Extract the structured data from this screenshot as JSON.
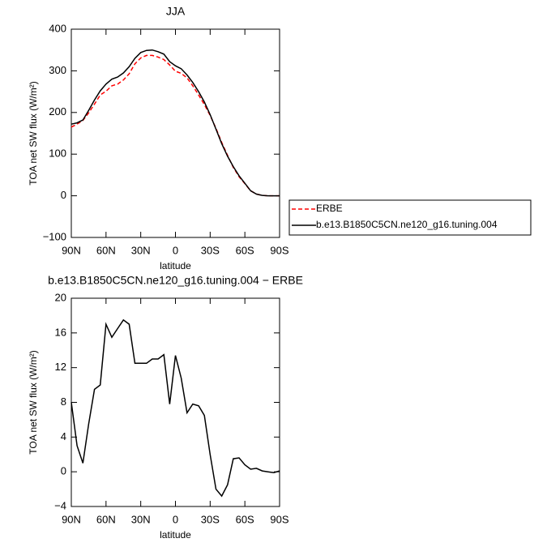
{
  "chart_data": [
    {
      "type": "line",
      "title": "JJA",
      "xlabel": "latitude",
      "ylabel": "TOA net SW flux (W/m²)",
      "x": [
        90,
        85,
        80,
        75,
        70,
        65,
        60,
        55,
        50,
        45,
        40,
        35,
        30,
        25,
        20,
        15,
        10,
        5,
        0,
        -5,
        -10,
        -15,
        -20,
        -25,
        -30,
        -35,
        -40,
        -45,
        -50,
        -55,
        -60,
        -65,
        -70,
        -75,
        -80,
        -85,
        -90
      ],
      "series": [
        {
          "name": "ERBE",
          "color": "#ff0000",
          "dash": true,
          "values": [
            165,
            172,
            181,
            199,
            220,
            242,
            251,
            264,
            268,
            278,
            293,
            317,
            331,
            337,
            337,
            333,
            327,
            314,
            299,
            294,
            283,
            264,
            242,
            219,
            193,
            162,
            128,
            97,
            68,
            46,
            29,
            12,
            4,
            1,
            0,
            0,
            0
          ]
        },
        {
          "name": "b.e13.B1850C5CN.ne120_g16.tuning.004",
          "color": "#000000",
          "dash": false,
          "values": [
            172,
            175,
            182,
            205,
            230,
            252,
            268,
            280,
            285,
            295,
            310,
            330,
            344,
            349,
            350,
            346,
            340,
            322,
            312,
            305,
            290,
            272,
            250,
            225,
            195,
            160,
            125,
            95,
            70,
            48,
            30,
            12,
            4,
            1,
            0,
            0,
            0
          ]
        }
      ],
      "xlim": [
        90,
        -90
      ],
      "xticks": [
        {
          "value": 90,
          "label": "90N"
        },
        {
          "value": 60,
          "label": "60N"
        },
        {
          "value": 30,
          "label": "30N"
        },
        0,
        {
          "value": -30,
          "label": "30S"
        },
        {
          "value": -60,
          "label": "60S"
        },
        {
          "value": -90,
          "label": "90S"
        }
      ],
      "ylim": [
        -100,
        400
      ],
      "yticks": [
        {
          "value": -100,
          "label": "−100"
        },
        0,
        100,
        200,
        300,
        400
      ],
      "legend": "outside-right"
    },
    {
      "type": "line",
      "title": "b.e13.B1850C5CN.ne120_g16.tuning.004 − ERBE",
      "xlabel": "latitude",
      "ylabel": "TOA net SW flux (W/m²)",
      "x": [
        90,
        85,
        80,
        75,
        70,
        65,
        60,
        55,
        50,
        45,
        40,
        35,
        30,
        25,
        20,
        15,
        10,
        5,
        0,
        -5,
        -10,
        -15,
        -20,
        -25,
        -30,
        -35,
        -40,
        -45,
        -50,
        -55,
        -60,
        -65,
        -70,
        -75,
        -80,
        -85,
        -90
      ],
      "values": [
        8,
        3,
        1,
        5.5,
        9.5,
        10,
        17,
        15.5,
        16.5,
        17.5,
        17,
        12.5,
        12.5,
        12.5,
        13,
        13,
        13.5,
        7.8,
        13.4,
        10.8,
        6.8,
        7.8,
        7.6,
        6.5,
        2,
        -2,
        -2.8,
        -1.5,
        1.5,
        1.6,
        0.8,
        0.3,
        0.4,
        0.1,
        0,
        -0.1,
        0.1
      ],
      "color": "#000000",
      "xlim": [
        90,
        -90
      ],
      "xticks": [
        {
          "value": 90,
          "label": "90N"
        },
        {
          "value": 60,
          "label": "60N"
        },
        {
          "value": 30,
          "label": "30N"
        },
        0,
        {
          "value": -30,
          "label": "30S"
        },
        {
          "value": -60,
          "label": "60S"
        },
        {
          "value": -90,
          "label": "90S"
        }
      ],
      "ylim": [
        -4,
        20
      ],
      "yticks": [
        {
          "value": -4,
          "label": "−4"
        },
        0,
        4,
        8,
        12,
        16,
        20
      ]
    }
  ]
}
